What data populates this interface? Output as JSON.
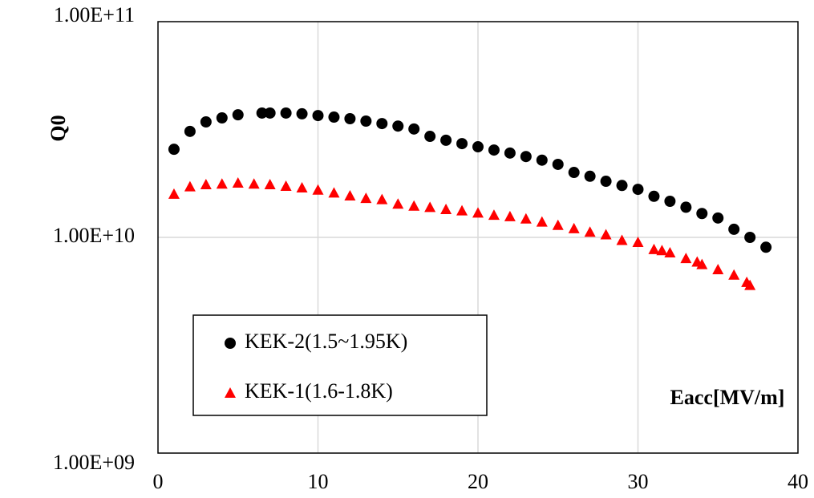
{
  "chart_data": {
    "type": "scatter",
    "y_label": "Q0",
    "x_label": "Eacc[MV/m]",
    "log_y": true,
    "grid": true,
    "legend": "bottom-left",
    "xlim": [
      0,
      40
    ],
    "xticks": [
      0,
      10,
      20,
      30,
      40
    ],
    "ylim": [
      1000000000,
      100000000000
    ],
    "yticks": [
      {
        "value": 1000000000,
        "label": "1.00E+09"
      },
      {
        "value": 10000000000,
        "label": "1.00E+10"
      },
      {
        "value": 100000000000,
        "label": "1.00E+11"
      }
    ],
    "series": [
      {
        "name": "KEK-2(1.5~1.95K)",
        "color": "#000000",
        "marker": "circle",
        "x": [
          1,
          2,
          3,
          4,
          5,
          6.5,
          7,
          8,
          9,
          10,
          11,
          12,
          13,
          14,
          15,
          16,
          17,
          18,
          19,
          20,
          21,
          22,
          23,
          24,
          25,
          26,
          27,
          28,
          29,
          30,
          31,
          32,
          33,
          34,
          35,
          36,
          37,
          38
        ],
        "values": [
          25600000000,
          31000000000,
          34300000000,
          35800000000,
          37000000000,
          37700000000,
          37700000000,
          37700000000,
          37400000000,
          36700000000,
          36100000000,
          35500000000,
          34600000000,
          33700000000,
          32800000000,
          31800000000,
          29400000000,
          28200000000,
          27200000000,
          26300000000,
          25400000000,
          24600000000,
          23700000000,
          22800000000,
          21800000000,
          20000000000,
          19200000000,
          18200000000,
          17400000000,
          16700000000,
          15500000000,
          14700000000,
          13800000000,
          12900000000,
          12300000000,
          10900000000,
          10000000000,
          9000000000
        ]
      },
      {
        "name": "KEK-1(1.6-1.8K)",
        "color": "#ff0000",
        "marker": "triangle",
        "x": [
          1,
          2,
          3,
          4,
          5,
          6,
          7,
          8,
          9,
          10,
          11,
          12,
          13,
          14,
          15,
          16,
          17,
          18,
          19,
          20,
          21,
          22,
          23,
          24,
          25,
          26,
          27,
          28,
          29,
          30,
          31,
          31.5,
          32,
          33,
          33.7,
          34,
          35,
          36,
          36.8,
          37
        ],
        "values": [
          15900000000,
          17200000000,
          17600000000,
          17700000000,
          17900000000,
          17700000000,
          17600000000,
          17300000000,
          17000000000,
          16600000000,
          16100000000,
          15600000000,
          15200000000,
          15000000000,
          14300000000,
          14000000000,
          13800000000,
          13500000000,
          13300000000,
          13000000000,
          12700000000,
          12500000000,
          12200000000,
          11800000000,
          11400000000,
          11000000000,
          10600000000,
          10300000000,
          9700000000,
          9500000000,
          8800000000,
          8700000000,
          8500000000,
          8000000000,
          7700000000,
          7500000000,
          7100000000,
          6700000000,
          6200000000,
          6000000000
        ]
      }
    ]
  }
}
